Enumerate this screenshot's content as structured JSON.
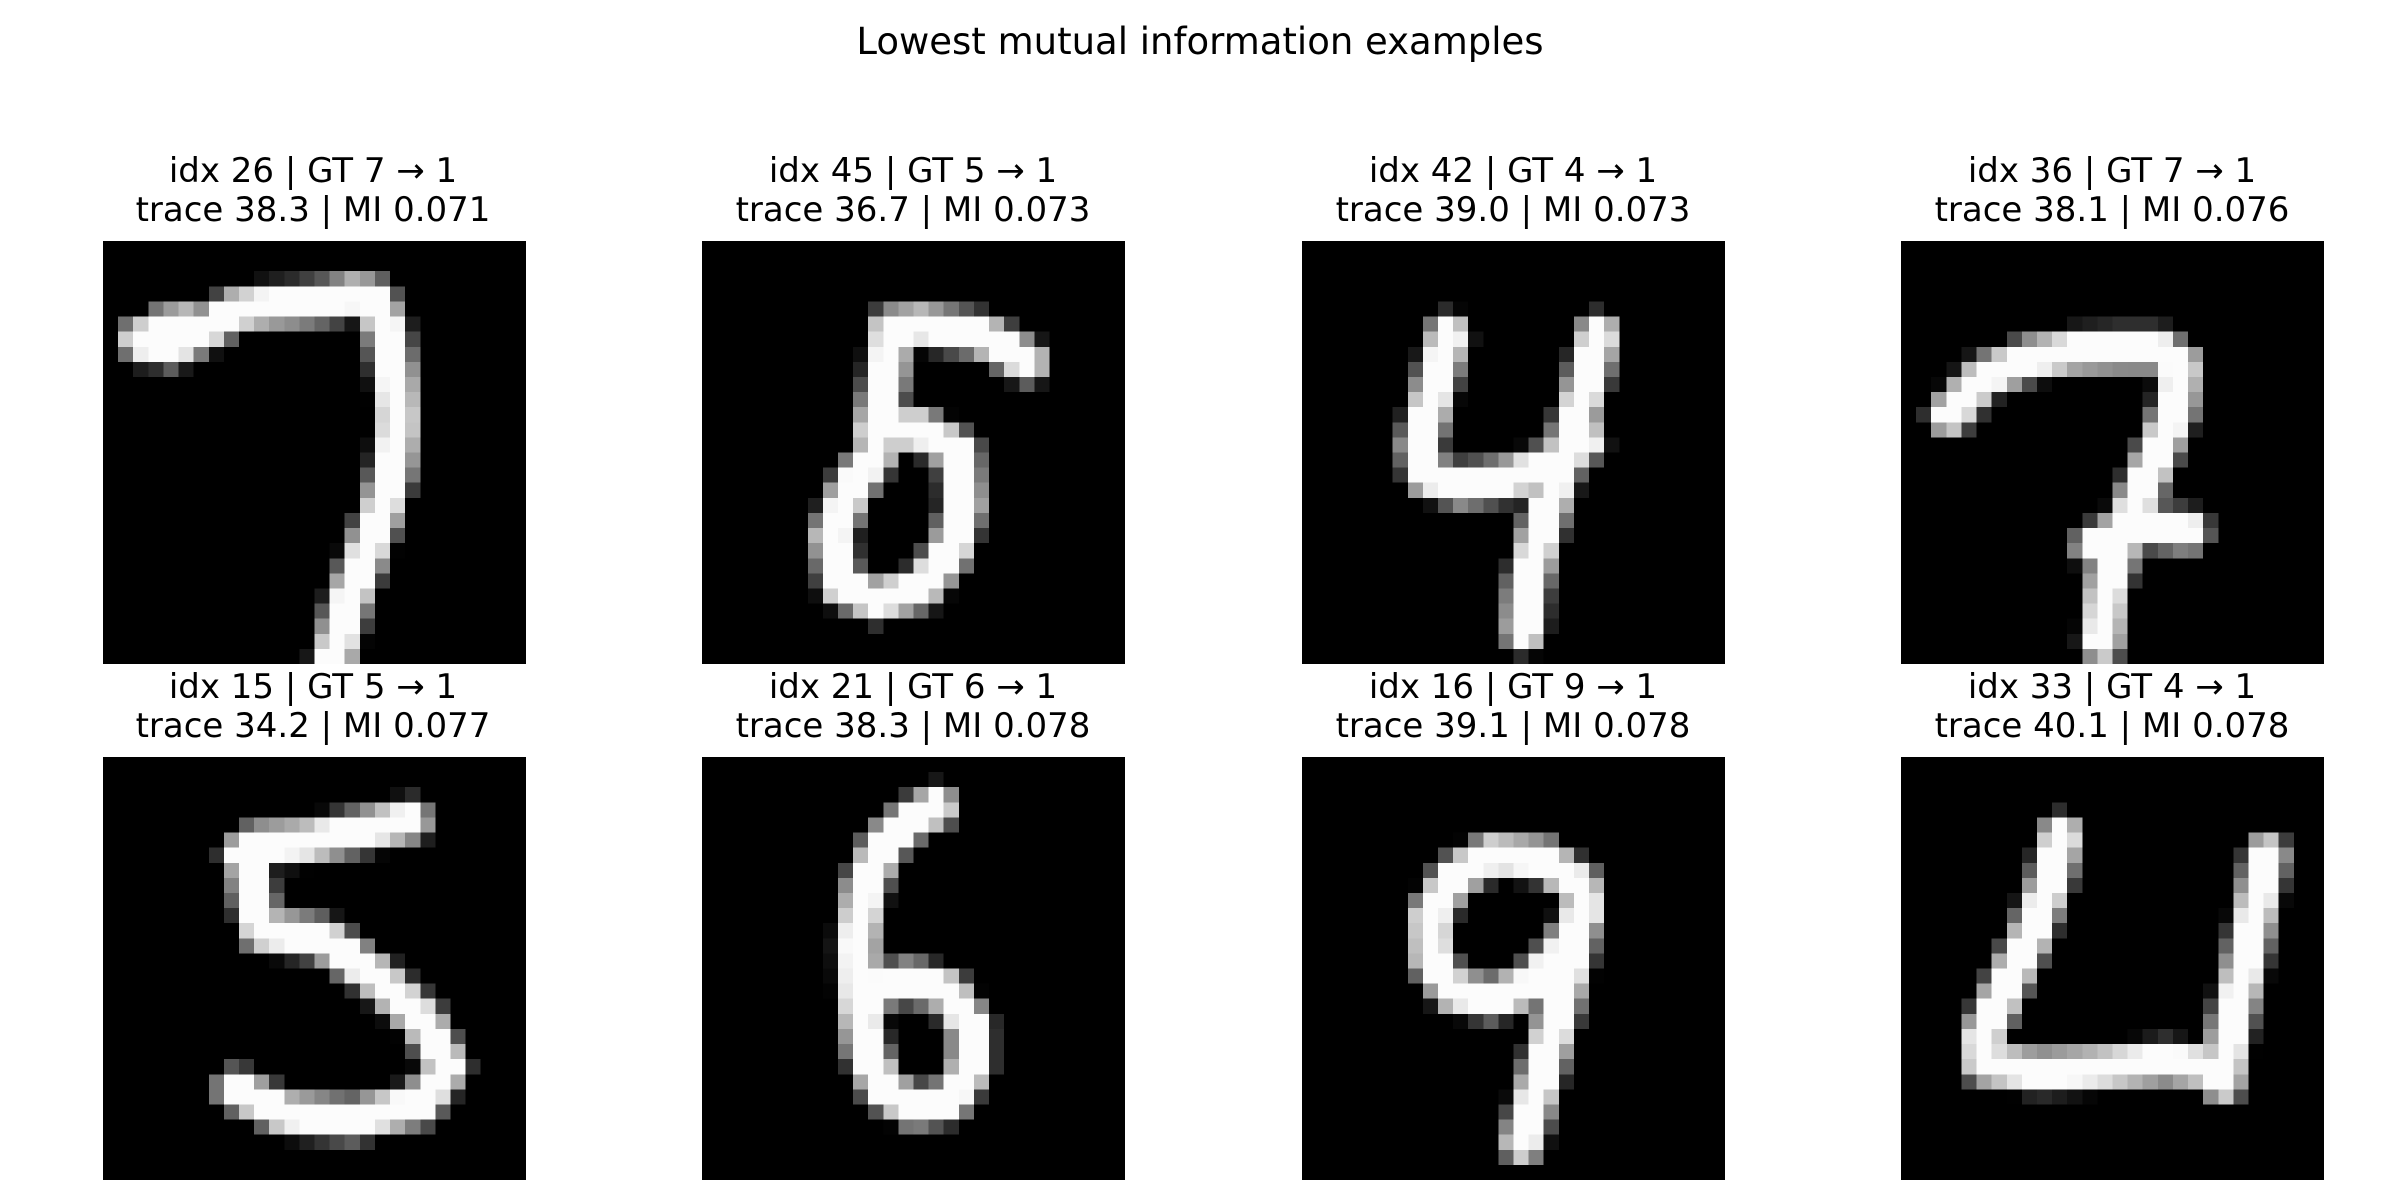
{
  "figure": {
    "suptitle": "Lowest mutual information examples"
  },
  "chart_data": {
    "type": "image_grid",
    "title": "Lowest mutual information examples",
    "rows": 2,
    "cols": 4,
    "colormap": "gray",
    "panels": [
      {
        "idx": 26,
        "gt": 7,
        "pred": 1,
        "trace": 38.3,
        "mi": 0.071,
        "title_line1": "idx 26 | GT 7 → 1",
        "title_line2": "trace 38.3 | MI 0.071"
      },
      {
        "idx": 45,
        "gt": 5,
        "pred": 1,
        "trace": 36.7,
        "mi": 0.073,
        "title_line1": "idx 45 | GT 5 → 1",
        "title_line2": "trace 36.7 | MI 0.073"
      },
      {
        "idx": 42,
        "gt": 4,
        "pred": 1,
        "trace": 39.0,
        "mi": 0.073,
        "title_line1": "idx 42 | GT 4 → 1",
        "title_line2": "trace 39.0 | MI 0.073"
      },
      {
        "idx": 36,
        "gt": 7,
        "pred": 1,
        "trace": 38.1,
        "mi": 0.076,
        "title_line1": "idx 36 | GT 7 → 1",
        "title_line2": "trace 38.1 | MI 0.076"
      },
      {
        "idx": 15,
        "gt": 5,
        "pred": 1,
        "trace": 34.2,
        "mi": 0.077,
        "title_line1": "idx 15 | GT 5 → 1",
        "title_line2": "trace 34.2 | MI 0.077"
      },
      {
        "idx": 21,
        "gt": 6,
        "pred": 1,
        "trace": 38.3,
        "mi": 0.078,
        "title_line1": "idx 21 | GT 6 → 1",
        "title_line2": "trace 38.3 | MI 0.078"
      },
      {
        "idx": 16,
        "gt": 9,
        "pred": 1,
        "trace": 39.1,
        "mi": 0.078,
        "title_line1": "idx 16 | GT 9 → 1",
        "title_line2": "trace 39.1 | MI 0.078"
      },
      {
        "idx": 33,
        "gt": 4,
        "pred": 1,
        "trace": 40.1,
        "mi": 0.078,
        "title_line1": "idx 33 | GT 4 → 1",
        "title_line2": "trace 40.1 | MI 0.078"
      }
    ]
  }
}
